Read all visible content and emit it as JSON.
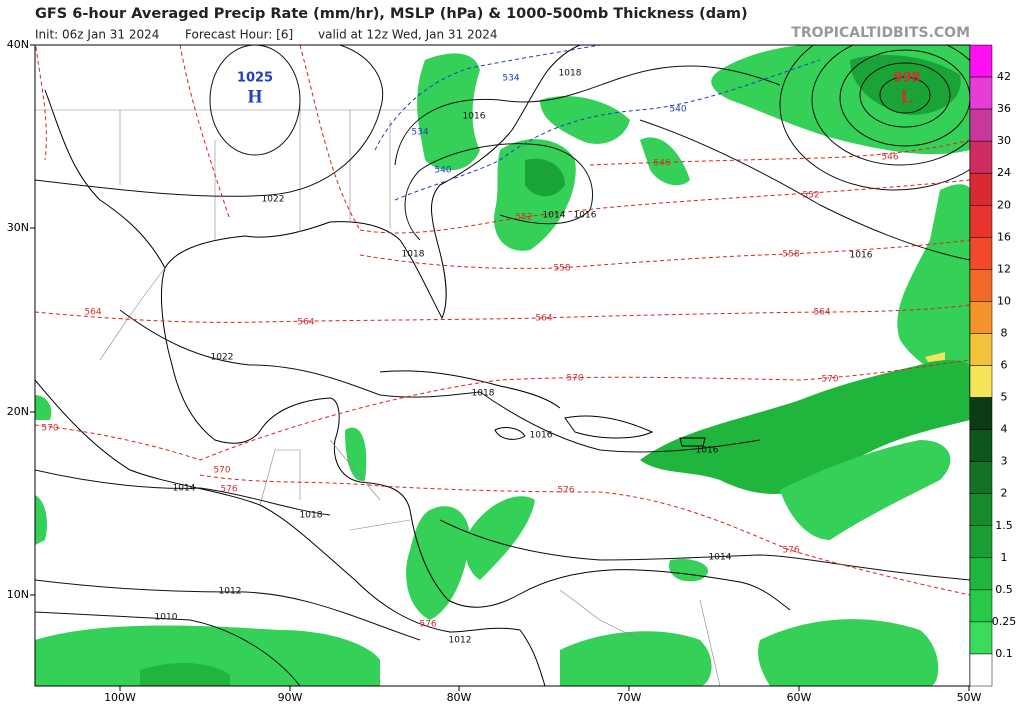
{
  "header": {
    "title": "GFS 6-hour Averaged Precip Rate (mm/hr), MSLP (hPa) & 1000-500mb Thickness (dam)",
    "init": "Init: 06z Jan 31 2024",
    "forecast_hour": "Forecast Hour: [6]",
    "valid": "valid at 12z Wed, Jan 31 2024",
    "site": "TROPICALTIDBITS.COM"
  },
  "lat_labels": [
    "40N",
    "30N",
    "20N",
    "10N"
  ],
  "lon_labels": [
    "100W",
    "90W",
    "80W",
    "70W",
    "60W",
    "50W"
  ],
  "pressure_centers": [
    {
      "value": "1025",
      "type": "H",
      "color": "#1f3fbf"
    },
    {
      "value": "998",
      "type": "L",
      "color": "#d32f2f"
    }
  ],
  "isobar_labels": [
    "1018",
    "1016",
    "1022",
    "1018",
    "1014",
    "1016",
    "1016",
    "1022",
    "1018",
    "1016",
    "1016",
    "1014",
    "1018",
    "1014",
    "1012",
    "1010",
    "1012"
  ],
  "thickness_labels": [
    {
      "value": "534",
      "color": "#1f3fbf"
    },
    {
      "value": "534",
      "color": "#1f3fbf"
    },
    {
      "value": "540",
      "color": "#1f3fbf"
    },
    {
      "value": "540",
      "color": "#1f3fbf"
    },
    {
      "value": "546",
      "color": "#d32f2f"
    },
    {
      "value": "546",
      "color": "#d32f2f"
    },
    {
      "value": "552",
      "color": "#d32f2f"
    },
    {
      "value": "552",
      "color": "#d32f2f"
    },
    {
      "value": "558",
      "color": "#d32f2f"
    },
    {
      "value": "558",
      "color": "#d32f2f"
    },
    {
      "value": "564",
      "color": "#d32f2f"
    },
    {
      "value": "564",
      "color": "#d32f2f"
    },
    {
      "value": "564",
      "color": "#d32f2f"
    },
    {
      "value": "564",
      "color": "#d32f2f"
    },
    {
      "value": "570",
      "color": "#d32f2f"
    },
    {
      "value": "570",
      "color": "#d32f2f"
    },
    {
      "value": "570",
      "color": "#d32f2f"
    },
    {
      "value": "570",
      "color": "#d32f2f"
    },
    {
      "value": "576",
      "color": "#d32f2f"
    },
    {
      "value": "576",
      "color": "#d32f2f"
    },
    {
      "value": "576",
      "color": "#d32f2f"
    },
    {
      "value": "576",
      "color": "#d32f2f"
    }
  ],
  "colorbar": {
    "labels": [
      "42",
      "36",
      "30",
      "24",
      "20",
      "16",
      "12",
      "10",
      "8",
      "6",
      "5",
      "4",
      "3",
      "2",
      "1.5",
      "1",
      "0.5",
      "0.25",
      "0.1"
    ],
    "colors": [
      "#ff10f0",
      "#e83cd8",
      "#c8389c",
      "#d02c64",
      "#d82a34",
      "#e8342e",
      "#f04a2a",
      "#f26a2a",
      "#f4922c",
      "#f2c23c",
      "#f6e45a",
      "#0b3b14",
      "#0d561d",
      "#127326",
      "#168a2d",
      "#1a9f35",
      "#20b63e",
      "#28c849",
      "#3adc5b",
      "#ffffff"
    ]
  }
}
